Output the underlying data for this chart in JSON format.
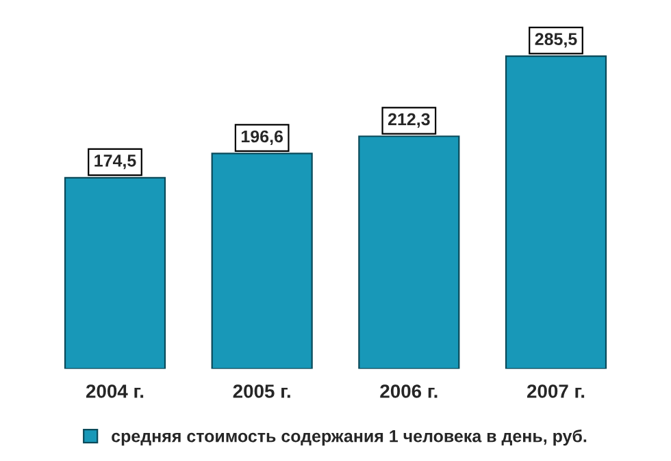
{
  "chart_data": {
    "type": "bar",
    "categories": [
      "2004 г.",
      "2005 г.",
      "2006 г.",
      "2007 г."
    ],
    "series": [
      {
        "name": "средняя стоимость содержания 1 человека в день, руб.",
        "color": "#1898b8",
        "values": [
          174.5,
          196.6,
          212.3,
          285.5
        ],
        "value_labels": [
          "174,5",
          "196,6",
          "212,3",
          "285,5"
        ]
      }
    ],
    "legend": "bottom"
  }
}
